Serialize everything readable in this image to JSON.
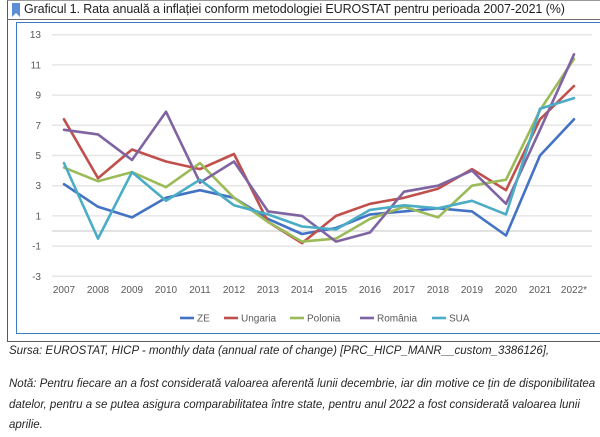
{
  "title": "Graficul 1. Rata anuală a inflației conform metodologiei EUROSTAT pentru perioada 2007-2021 (%)",
  "source": "Sursa: EUROSTAT, HICP - monthly data (annual rate of change) [PRC_HICP_MANR__custom_3386126],",
  "note": "Notă: Pentru fiecare an a fost considerată valoarea aferentă lunii decembrie, iar din motive ce țin de disponibilitatea datelor, pentru a se putea asigura comparabilitatea între state, pentru anul 2022 a fost considerată valoarea lunii aprilie.",
  "chart_data": {
    "type": "line",
    "title": "Graficul 1. Rata anuală a inflației conform metodologiei EUROSTAT pentru perioada 2007-2021 (%)",
    "xlabel": "",
    "ylabel": "",
    "categories": [
      "2007",
      "2008",
      "2009",
      "2010",
      "2011",
      "2012",
      "2013",
      "2014",
      "2015",
      "2016",
      "2017",
      "2018",
      "2019",
      "2020",
      "2021",
      "2022*"
    ],
    "ylim": [
      -3,
      13
    ],
    "yticks": [
      13,
      11,
      9,
      7,
      5,
      3,
      1,
      -1,
      -3
    ],
    "grid": true,
    "legend_position": "bottom",
    "series": [
      {
        "name": "ZE",
        "color": "#4472C4",
        "values": [
          3.1,
          1.6,
          0.9,
          2.2,
          2.7,
          2.2,
          0.8,
          -0.2,
          0.2,
          1.1,
          1.3,
          1.5,
          1.3,
          -0.3,
          5.0,
          7.4
        ]
      },
      {
        "name": "Ungaria",
        "color": "#C0504D",
        "values": [
          7.4,
          3.5,
          5.4,
          4.6,
          4.1,
          5.1,
          0.6,
          -0.8,
          1.0,
          1.8,
          2.2,
          2.8,
          4.1,
          2.7,
          7.4,
          9.6
        ]
      },
      {
        "name": "Polonia",
        "color": "#9BBB59",
        "values": [
          4.2,
          3.3,
          3.9,
          2.9,
          4.5,
          2.2,
          0.6,
          -0.7,
          -0.5,
          0.8,
          1.6,
          0.9,
          3.0,
          3.4,
          8.0,
          11.4
        ]
      },
      {
        "name": "România",
        "color": "#8064A2",
        "values": [
          6.7,
          6.4,
          4.7,
          7.9,
          3.2,
          4.6,
          1.3,
          1.0,
          -0.7,
          -0.1,
          2.6,
          3.0,
          4.0,
          1.8,
          6.7,
          11.7
        ]
      },
      {
        "name": "SUA",
        "color": "#4BACC6",
        "values": [
          4.5,
          -0.5,
          3.9,
          2.0,
          3.4,
          1.7,
          1.1,
          0.3,
          0.1,
          1.4,
          1.7,
          1.5,
          2.0,
          1.1,
          8.1,
          8.8
        ]
      }
    ]
  }
}
